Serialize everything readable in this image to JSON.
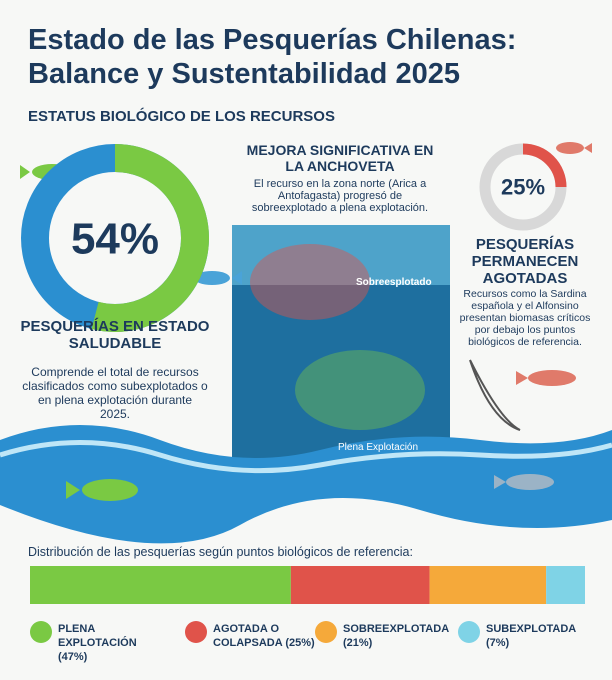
{
  "header": {
    "title": [
      "Estado de las Pesquerías Chilenas:",
      "Balance y Sustentabilidad 2025"
    ]
  },
  "section_title": "ESTATUS BIOLÓGICO DE LOS RECURSOS",
  "chart_data": [
    {
      "type": "donut",
      "values": [
        54
      ],
      "value_labels": [
        "54%"
      ],
      "color": "#7ac943",
      "title": "PESQUERÍAS EN ESTADO SALUDABLE",
      "description": "Comprende el total de recursos clasificados como subexplotados o en plena explotación durante 2025."
    },
    {
      "type": "donut",
      "values": [
        25
      ],
      "value_labels": [
        "25%"
      ],
      "color": "#e0534a",
      "title": "PESQUERÍAS PERMANECEN AGOTADAS",
      "description": "Recursos como la Sardina española y el Alfonsino presentan biomasas críticos por debajo los puntos biológicos de referencia."
    },
    {
      "type": "stacked-bar",
      "title": "Distribución de las pesquerías según puntos biológicos de referencia:",
      "series": [
        {
          "name": "PLENA EXPLOTACIÓN (47%)",
          "color": "#7ac943",
          "values": [
            47
          ]
        },
        {
          "name": "AGOTADA O COLAPSADA (25%)",
          "color": "#e0534a",
          "values": [
            25
          ]
        },
        {
          "name": "SOBREEXPLOTADA (21%)",
          "color": "#f5a93a",
          "values": [
            21
          ]
        },
        {
          "name": "SUBEXPLOTADA (7%)",
          "color": "#7fd3e6",
          "values": [
            7
          ]
        }
      ]
    }
  ],
  "anchoveta": {
    "title": "MEJORA SIGNIFICATIVA EN LA ANCHOVETA",
    "text": "El recurso en la zona norte (Arica a Antofagasta) progresó de sobreexplotado a plena explotación.",
    "labels": [
      "Sobreesplotado",
      "Plena Explotación"
    ]
  }
}
